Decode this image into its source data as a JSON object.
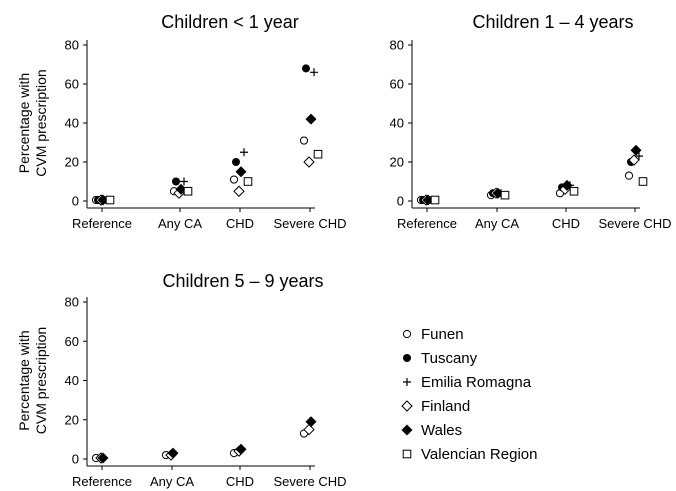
{
  "chart_data": [
    {
      "type": "scatter",
      "title": "Children < 1 year",
      "ylabel": [
        "Percentage with",
        "CVM prescription"
      ],
      "ylim": [
        0,
        80
      ],
      "yticks": [
        0,
        20,
        40,
        60,
        80
      ],
      "categories": [
        "Reference",
        "Any CA",
        "CHD",
        "Severe CHD"
      ],
      "series": [
        {
          "name": "Funen",
          "marker": "open-circle",
          "values": [
            0.5,
            5,
            11,
            31
          ]
        },
        {
          "name": "Tuscany",
          "marker": "filled-circle",
          "values": [
            0.5,
            10,
            20,
            68
          ]
        },
        {
          "name": "Emilia Romagna",
          "marker": "plus",
          "values": [
            0.5,
            10,
            25,
            66
          ]
        },
        {
          "name": "Finland",
          "marker": "open-diamond",
          "values": [
            0.5,
            4,
            5,
            20
          ]
        },
        {
          "name": "Wales",
          "marker": "filled-diamond",
          "values": [
            0.5,
            6,
            15,
            42
          ]
        },
        {
          "name": "Valencian Region",
          "marker": "open-square",
          "values": [
            0.5,
            5,
            10,
            24
          ]
        }
      ]
    },
    {
      "type": "scatter",
      "title": "Children 1 – 4 years",
      "ylim": [
        0,
        80
      ],
      "yticks": [
        0,
        20,
        40,
        60,
        80
      ],
      "categories": [
        "Reference",
        "Any CA",
        "CHD",
        "Severe CHD"
      ],
      "series": [
        {
          "name": "Funen",
          "marker": "open-circle",
          "values": [
            0.5,
            3,
            4,
            13
          ]
        },
        {
          "name": "Tuscany",
          "marker": "filled-circle",
          "values": [
            0.5,
            4,
            7,
            20
          ]
        },
        {
          "name": "Emilia Romagna",
          "marker": "plus",
          "values": [
            0.5,
            4,
            8,
            23
          ]
        },
        {
          "name": "Finland",
          "marker": "open-diamond",
          "values": [
            0.5,
            4,
            6,
            21
          ]
        },
        {
          "name": "Wales",
          "marker": "filled-diamond",
          "values": [
            0.5,
            4,
            8,
            26
          ]
        },
        {
          "name": "Valencian Region",
          "marker": "open-square",
          "values": [
            0.5,
            3,
            5,
            10
          ]
        }
      ]
    },
    {
      "type": "scatter",
      "title": "Children 5 – 9 years",
      "ylabel": [
        "Percentage with",
        "CVM prescription"
      ],
      "ylim": [
        0,
        80
      ],
      "yticks": [
        0,
        20,
        40,
        60,
        80
      ],
      "categories": [
        "Reference",
        "Any CA",
        "CHD",
        "Severe CHD"
      ],
      "series": [
        {
          "name": "Funen",
          "marker": "open-circle",
          "values": [
            0.5,
            2,
            3,
            13
          ]
        },
        {
          "name": "Finland",
          "marker": "open-diamond",
          "values": [
            0.5,
            2,
            4,
            15
          ]
        },
        {
          "name": "Wales",
          "marker": "filled-diamond",
          "values": [
            0.5,
            3,
            5,
            19
          ]
        }
      ]
    }
  ],
  "legend": {
    "placement": "bottom-right",
    "items": [
      {
        "label": "Funen",
        "marker": "open-circle"
      },
      {
        "label": "Tuscany",
        "marker": "filled-circle"
      },
      {
        "label": "Emilia Romagna",
        "marker": "plus"
      },
      {
        "label": "Finland",
        "marker": "open-diamond"
      },
      {
        "label": "Wales",
        "marker": "filled-diamond"
      },
      {
        "label": "Valencian Region",
        "marker": "open-square"
      }
    ]
  }
}
